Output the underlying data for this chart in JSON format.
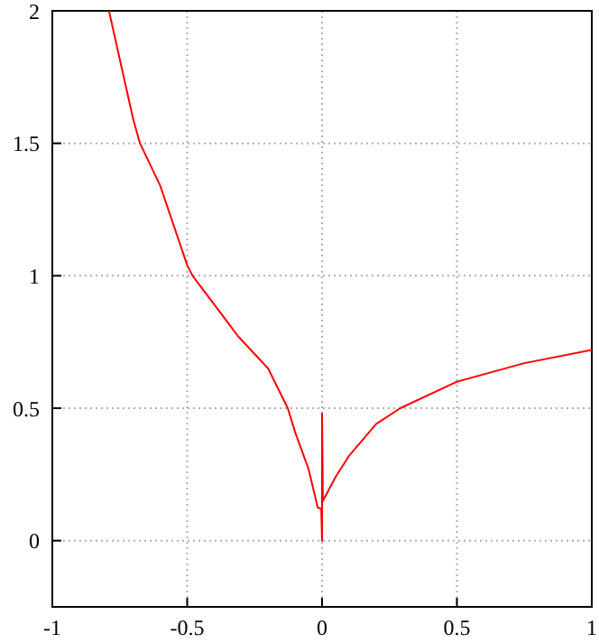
{
  "chart_data": {
    "type": "line",
    "x": [
      -0.79,
      -0.7,
      -0.675,
      -0.6,
      -0.5,
      -0.48,
      -0.31,
      -0.2,
      -0.127,
      -0.1,
      -0.05,
      -0.016,
      -0.003,
      0,
      0,
      0.003,
      0.05,
      0.1,
      0.2,
      0.29,
      0.5,
      0.75,
      1
    ],
    "series": [
      {
        "color": "#ff0000",
        "values": [
          2,
          1.59,
          1.5,
          1.34,
          1.04,
          1,
          0.77,
          0.65,
          0.5,
          0.41,
          0.27,
          0.125,
          0.12,
          0,
          0.48,
          0.15,
          0.24,
          0.32,
          0.44,
          0.5,
          0.6,
          0.67,
          0.72
        ]
      }
    ],
    "xlim": [
      -1,
      1
    ],
    "xticks": [
      -1,
      -0.5,
      0,
      0.5,
      1
    ],
    "ylim": [
      -0.25,
      2
    ],
    "yticks": [
      0,
      0.5,
      1,
      1.5,
      2
    ],
    "grid": true,
    "marker": "none",
    "line_style": "solid"
  }
}
